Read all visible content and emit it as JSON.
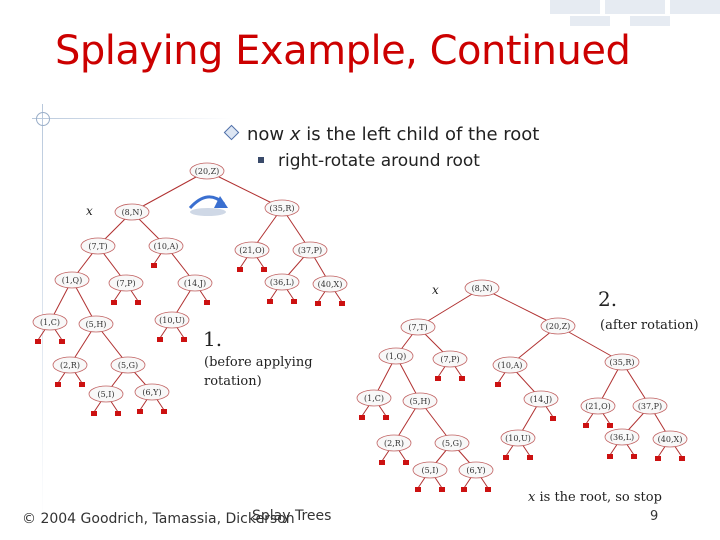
{
  "slide": {
    "title": "Splaying Example, Continued",
    "bullet_main_prefix": "now ",
    "bullet_main_var": "x",
    "bullet_main_suffix": " is the left child of the root",
    "bullet_sub": "right-rotate around root",
    "footer_left": "© 2004 Goodrich, Tamassia, Dickerson",
    "footer_center": "Splay Trees",
    "page_number": "9",
    "stop_var": "x",
    "stop_text": " is the root, so stop"
  },
  "diagram": {
    "left_tree": {
      "step_label": "1.",
      "caption_line1": "(before applying",
      "caption_line2": "rotation)",
      "x_marker": "x",
      "nodes": {
        "n20z": "(20,Z)",
        "n8n": "(8,N)",
        "n35r": "(35,R)",
        "n7t": "(7,T)",
        "n10a": "(10,A)",
        "n21o": "(21,O)",
        "n37p": "(37,P)",
        "n1q": "(1,Q)",
        "n7p": "(7,P)",
        "n14j": "(14,J)",
        "n36l": "(36,L)",
        "n40x": "(40,X)",
        "n1c": "(1,C)",
        "n5h": "(5,H)",
        "n10u": "(10,U)",
        "n2r": "(2,R)",
        "n5g": "(5,G)",
        "n5i": "(5,I)",
        "n6y": "(6,Y)"
      }
    },
    "right_tree": {
      "step_label": "2.",
      "caption": "(after rotation)",
      "x_marker": "x",
      "nodes": {
        "n8n": "(8,N)",
        "n7t": "(7,T)",
        "n20z": "(20,Z)",
        "n1q": "(1,Q)",
        "n7p": "(7,P)",
        "n10a": "(10,A)",
        "n35r": "(35,R)",
        "n1c": "(1,C)",
        "n5h": "(5,H)",
        "n14j": "(14,J)",
        "n21o": "(21,O)",
        "n37p": "(37,P)",
        "n2r": "(2,R)",
        "n5g": "(5,G)",
        "n10u": "(10,U)",
        "n36l": "(36,L)",
        "n40x": "(40,X)",
        "n5i": "(5,I)",
        "n6y": "(6,Y)"
      }
    },
    "colors": {
      "node_fill": "#f8f8f8",
      "node_stroke": "#c06060",
      "edge": "#b03030",
      "leaf": "#cc1111",
      "arrow": "#3a6fd0"
    }
  }
}
